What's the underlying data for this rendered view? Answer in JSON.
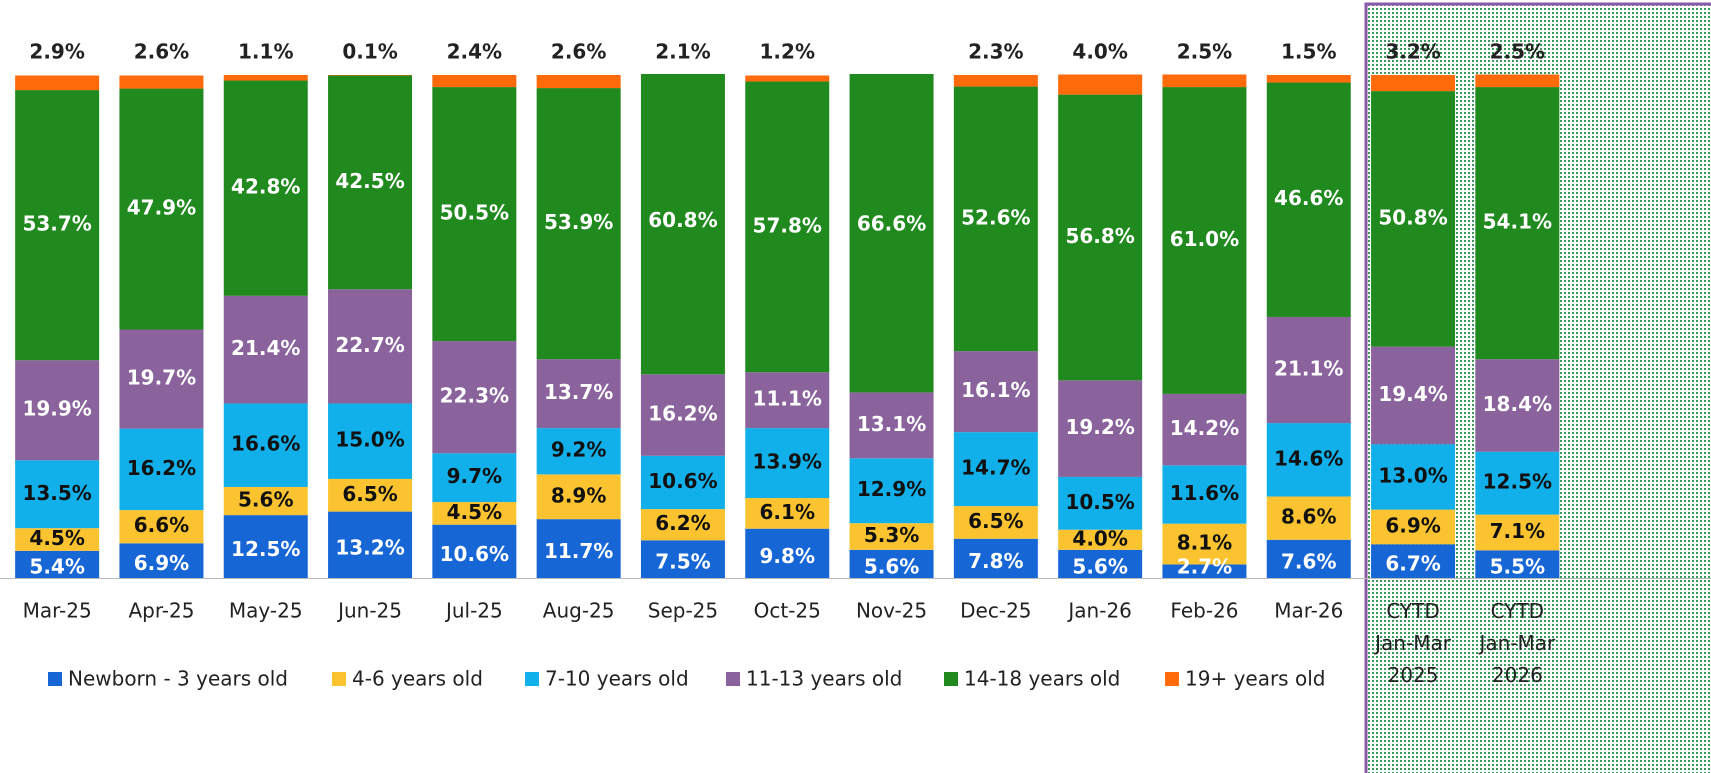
{
  "chart_data": {
    "type": "bar",
    "stacked": true,
    "legend": "bottom",
    "categories": [
      "Mar-25",
      "Apr-25",
      "May-25",
      "Jun-25",
      "Jul-25",
      "Aug-25",
      "Sep-25",
      "Oct-25",
      "Nov-25",
      "Dec-25",
      "Jan-26",
      "Feb-26",
      "Mar-26",
      "CYTD\nJan-Mar\n2025",
      "CYTD\nJan-Mar\n2026"
    ],
    "ylim": [
      0,
      100
    ],
    "series": [
      {
        "name": "Newborn - 3 years old",
        "color": "#1766d6",
        "label_color": "#ffffff",
        "values": [
          5.4,
          6.9,
          12.5,
          13.2,
          10.6,
          11.7,
          7.5,
          9.8,
          5.6,
          7.8,
          5.6,
          2.7,
          7.6,
          6.7,
          5.5
        ],
        "value_labels": [
          "5.4%",
          "6.9%",
          "12.5%",
          "13.2%",
          "10.6%",
          "11.7%",
          "7.5%",
          "9.8%",
          "5.6%",
          "7.8%",
          "5.6%",
          "2.7%",
          "7.6%",
          "6.7%",
          "5.5%"
        ]
      },
      {
        "name": "4-6 years old",
        "color": "#fbc330",
        "label_color": "#111111",
        "values": [
          4.5,
          6.6,
          5.6,
          6.5,
          4.5,
          8.9,
          6.2,
          6.1,
          5.3,
          6.5,
          4.0,
          8.1,
          8.6,
          6.9,
          7.1
        ],
        "value_labels": [
          "4.5%",
          "6.6%",
          "5.6%",
          "6.5%",
          "4.5%",
          "8.9%",
          "6.2%",
          "6.1%",
          "5.3%",
          "6.5%",
          "4.0%",
          "8.1%",
          "8.6%",
          "6.9%",
          "7.1%"
        ]
      },
      {
        "name": "7-10 years old",
        "color": "#12b0ea",
        "label_color": "#111111",
        "values": [
          13.5,
          16.2,
          16.6,
          15.0,
          9.7,
          9.2,
          10.6,
          13.9,
          12.9,
          14.7,
          10.5,
          11.6,
          14.6,
          13.0,
          12.5
        ],
        "value_labels": [
          "13.5%",
          "16.2%",
          "16.6%",
          "15.0%",
          "9.7%",
          "9.2%",
          "10.6%",
          "13.9%",
          "12.9%",
          "14.7%",
          "10.5%",
          "11.6%",
          "14.6%",
          "13.0%",
          "12.5%"
        ]
      },
      {
        "name": "11-13 years old",
        "color": "#8a629c",
        "label_color": "#ffffff",
        "values": [
          19.9,
          19.7,
          21.4,
          22.7,
          22.3,
          13.7,
          16.2,
          11.1,
          13.1,
          16.1,
          19.2,
          14.2,
          21.1,
          19.4,
          18.4
        ],
        "value_labels": [
          "19.9%",
          "19.7%",
          "21.4%",
          "22.7%",
          "22.3%",
          "13.7%",
          "16.2%",
          "11.1%",
          "13.1%",
          "16.1%",
          "19.2%",
          "14.2%",
          "21.1%",
          "19.4%",
          "18.4%"
        ]
      },
      {
        "name": "14-18  years old",
        "color": "#218a1f",
        "label_color": "#ffffff",
        "values": [
          53.7,
          47.9,
          42.8,
          42.5,
          50.5,
          53.9,
          60.8,
          57.8,
          66.6,
          52.6,
          56.8,
          61.0,
          46.6,
          50.8,
          54.1
        ],
        "value_labels": [
          "53.7%",
          "47.9%",
          "42.8%",
          "42.5%",
          "50.5%",
          "53.9%",
          "60.8%",
          "57.8%",
          "66.6%",
          "52.6%",
          "56.8%",
          "61.0%",
          "46.6%",
          "50.8%",
          "54.1%"
        ]
      },
      {
        "name": "19+ years old",
        "color": "#ff6a0a",
        "label_color": "#222222",
        "values": [
          2.9,
          2.6,
          1.1,
          0.1,
          2.4,
          2.6,
          2.1,
          1.2,
          null,
          2.3,
          4.0,
          2.5,
          1.5,
          3.2,
          2.5
        ],
        "value_labels": [
          "2.9%",
          "2.6%",
          "1.1%",
          "0.1%",
          "2.4%",
          "2.6%",
          "2.1%",
          "1.2%",
          null,
          "2.3%",
          "4.0%",
          "2.5%",
          "1.5%",
          "3.2%",
          "2.5%"
        ]
      }
    ]
  }
}
